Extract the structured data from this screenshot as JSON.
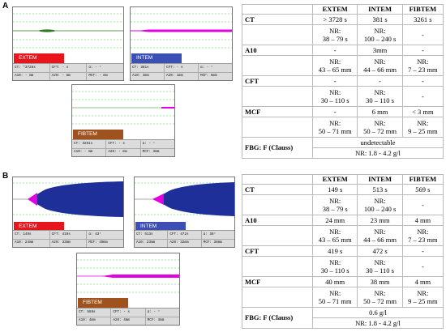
{
  "section_a": {
    "label": "A",
    "extem": {
      "tag": "EXTEM",
      "r1": [
        "CT: *3728s",
        "CFT: - s",
        "α: - °"
      ],
      "r2": [
        "A10: - mm",
        "A20: - mm",
        "MCF: - mm"
      ]
    },
    "intem": {
      "tag": "INTEM",
      "r1": [
        "CT: 381s",
        "CFT: - s",
        "α: - °"
      ],
      "r2": [
        "A10: 3mm",
        "A20: 1mm",
        "MCF: 6mm"
      ]
    },
    "fibtem": {
      "tag": "FIBTEM",
      "r1": [
        "CT: 3261s",
        "CFT: - s",
        "α: - °"
      ],
      "r2": [
        "A10: - mm",
        "A20: - mm",
        "MCF: 3mm"
      ]
    },
    "table": {
      "headers": [
        "",
        "EXTEM",
        "INTEM",
        "FIBTEM"
      ],
      "ct": [
        "CT",
        "> 3728 s",
        "381 s",
        "3261 s"
      ],
      "ct_nr": [
        "",
        "NR:\n38 – 79 s",
        "NR:\n100 – 240 s",
        "-"
      ],
      "a10": [
        "A10",
        "-",
        "3mm",
        "-"
      ],
      "a10_nr": [
        "",
        "NR:\n43 – 65 mm",
        "NR:\n44 – 66 mm",
        "NR:\n7 – 23 mm"
      ],
      "cft": [
        "CFT",
        "-",
        "-",
        "-"
      ],
      "cft_nr": [
        "",
        "NR:\n30 – 110 s",
        "NR:\n30 – 110 s",
        "-"
      ],
      "mcf": [
        "MCF",
        "-",
        "6 mm",
        "< 3 mm"
      ],
      "mcf_nr": [
        "",
        "NR:\n50 – 71 mm",
        "NR:\n50 – 72 mm",
        "NR:\n9 – 25 mm"
      ],
      "fbg_label": "FBG: F (Clauss)",
      "fbg_value": "undetectable",
      "fbg_nr": "NR: 1.8 - 4.2 g/l"
    }
  },
  "section_b": {
    "label": "B",
    "extem": {
      "tag": "EXTEM",
      "r1": [
        "CT: 149s",
        "CFT: 419s",
        "α: 43°"
      ],
      "r2": [
        "A10: 24mm",
        "A20: 33mm",
        "MCF: 40mm"
      ]
    },
    "intem": {
      "tag": "INTEM",
      "r1": [
        "CT: 513s",
        "CFT: 472s",
        "α: 36°"
      ],
      "r2": [
        "A10: 23mm",
        "A20: 32mm",
        "MCF: 38mm"
      ]
    },
    "fibtem": {
      "tag": "FIBTEM",
      "r1": [
        "CT: 569s",
        "CFT: - s",
        "α: - °"
      ],
      "r2": [
        "A10: 4mm",
        "A20: 4mm",
        "MCF: 4mm"
      ]
    },
    "table": {
      "headers": [
        "",
        "EXTEM",
        "INTEM",
        "FIBTEM"
      ],
      "ct": [
        "CT",
        "149 s",
        "513 s",
        "569 s"
      ],
      "ct_nr": [
        "",
        "NR:\n38 – 79 s",
        "NR:\n100 – 240 s",
        "-"
      ],
      "a10": [
        "A10",
        "24 mm",
        "23 mm",
        "4 mm"
      ],
      "a10_nr": [
        "",
        "NR:\n43 – 65 mm",
        "NR:\n44 – 66 mm",
        "NR:\n7 – 23 mm"
      ],
      "cft": [
        "CFT",
        "419 s",
        "472 s",
        "-"
      ],
      "cft_nr": [
        "",
        "NR:\n30 – 110 s",
        "NR:\n30 – 110 s",
        "-"
      ],
      "mcf": [
        "MCF",
        "40 mm",
        "38 mm",
        "4 mm"
      ],
      "mcf_nr": [
        "",
        "NR:\n50 – 71 mm",
        "NR:\n50 – 72 mm",
        "NR:\n9 – 25 mm"
      ],
      "fbg_label": "FBG: F (Clauss)",
      "fbg_value": "0.6 g/l",
      "fbg_nr": "NR: 1.8 - 4.2 g/l"
    }
  },
  "colors": {
    "extem": "#e8161c",
    "intem": "#3b4fb4",
    "fibtem": "#a0521d",
    "trace_magenta": "#e000e0",
    "trace_green": "#2f7a20",
    "trace_blue": "#1f2f9a",
    "grid_green": "#3fcf3f"
  }
}
